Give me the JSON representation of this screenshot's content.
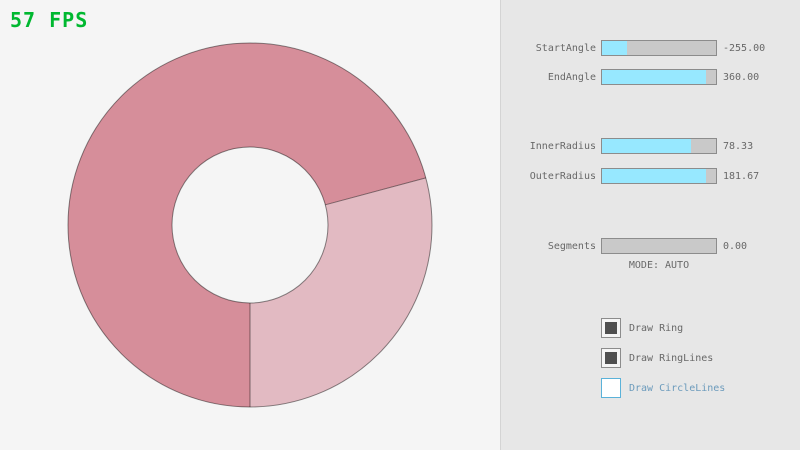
{
  "fps": {
    "text": "57 FPS"
  },
  "colors": {
    "fps_green": "#00b830",
    "accent_fill": "#97e8ff",
    "slider_track": "#c9c9c9",
    "slider_border": "#8c8c8c",
    "text_gray": "#686868",
    "focus_blue": "#5bb2d9",
    "focus_text": "#6c9bbc",
    "ring_single": "#e2bac2",
    "ring_double": "#d68e9a"
  },
  "ring": {
    "start_angle": -255.0,
    "end_angle": 360.0,
    "inner_radius": 78.33,
    "outer_radius": 181.67,
    "segments": 0,
    "mode": "AUTO"
  },
  "sliders": [
    {
      "label": "StartAngle",
      "value": "-255.00",
      "fill_pct": 22
    },
    {
      "label": "EndAngle",
      "value": "360.00",
      "fill_pct": 91
    },
    {
      "label": "InnerRadius",
      "value": "78.33",
      "fill_pct": 78
    },
    {
      "label": "OuterRadius",
      "value": "181.67",
      "fill_pct": 91
    },
    {
      "label": "Segments",
      "value": "0.00",
      "fill_pct": 0
    }
  ],
  "mode_text": "MODE: AUTO",
  "checkboxes": [
    {
      "label": "Draw Ring",
      "checked": true
    },
    {
      "label": "Draw RingLines",
      "checked": true
    },
    {
      "label": "Draw CircleLines",
      "checked": false
    }
  ]
}
